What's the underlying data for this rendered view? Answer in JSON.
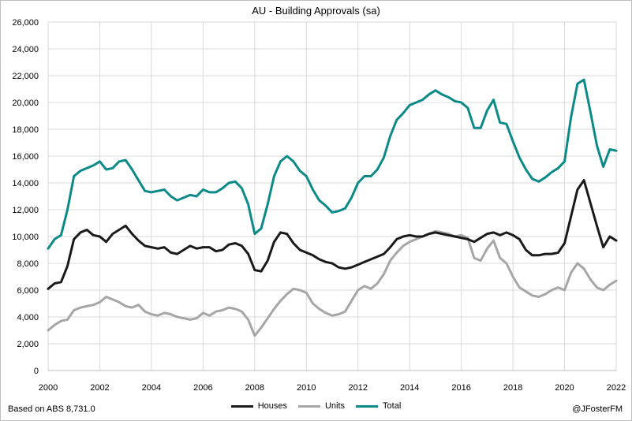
{
  "chart_data": {
    "type": "line",
    "title": "AU - Building Approvals (sa)",
    "source_note": "Based on ABS 8,731.0",
    "credit": "@JFosterFM",
    "xlim": [
      2000,
      2022
    ],
    "ylim": [
      0,
      26000
    ],
    "xticks": [
      "2000",
      "2002",
      "2004",
      "2006",
      "2008",
      "2010",
      "2012",
      "2014",
      "2016",
      "2018",
      "2020",
      "2022"
    ],
    "yticks": [
      "0",
      "2,000",
      "4,000",
      "6,000",
      "8,000",
      "10,000",
      "12,000",
      "14,000",
      "16,000",
      "18,000",
      "20,000",
      "22,000",
      "24,000",
      "26,000"
    ],
    "grid": true,
    "legend_position": "bottom",
    "x": [
      2000.0,
      2000.25,
      2000.5,
      2000.75,
      2001.0,
      2001.25,
      2001.5,
      2001.75,
      2002.0,
      2002.25,
      2002.5,
      2002.75,
      2003.0,
      2003.25,
      2003.5,
      2003.75,
      2004.0,
      2004.25,
      2004.5,
      2004.75,
      2005.0,
      2005.25,
      2005.5,
      2005.75,
      2006.0,
      2006.25,
      2006.5,
      2006.75,
      2007.0,
      2007.25,
      2007.5,
      2007.75,
      2008.0,
      2008.25,
      2008.5,
      2008.75,
      2009.0,
      2009.25,
      2009.5,
      2009.75,
      2010.0,
      2010.25,
      2010.5,
      2010.75,
      2011.0,
      2011.25,
      2011.5,
      2011.75,
      2012.0,
      2012.25,
      2012.5,
      2012.75,
      2013.0,
      2013.25,
      2013.5,
      2013.75,
      2014.0,
      2014.25,
      2014.5,
      2014.75,
      2015.0,
      2015.25,
      2015.5,
      2015.75,
      2016.0,
      2016.25,
      2016.5,
      2016.75,
      2017.0,
      2017.25,
      2017.5,
      2017.75,
      2018.0,
      2018.25,
      2018.5,
      2018.75,
      2019.0,
      2019.25,
      2019.5,
      2019.75,
      2020.0,
      2020.25,
      2020.5,
      2020.75,
      2021.0,
      2021.25,
      2021.5,
      2021.75,
      2022.0
    ],
    "series": [
      {
        "name": "Houses",
        "color": "#1a1a1a",
        "values": [
          6100,
          6500,
          6600,
          7800,
          9800,
          10300,
          10500,
          10100,
          10000,
          9600,
          10200,
          10500,
          10800,
          10200,
          9700,
          9300,
          9200,
          9100,
          9200,
          8800,
          8700,
          9000,
          9300,
          9100,
          9200,
          9200,
          8900,
          9000,
          9400,
          9500,
          9300,
          8700,
          7500,
          7400,
          8200,
          9600,
          10300,
          10200,
          9500,
          9000,
          8800,
          8600,
          8300,
          8100,
          8000,
          7700,
          7600,
          7700,
          7900,
          8100,
          8300,
          8500,
          8700,
          9200,
          9800,
          10000,
          10100,
          10000,
          10000,
          10200,
          10300,
          10200,
          10100,
          10000,
          9900,
          9800,
          9600,
          9900,
          10200,
          10300,
          10100,
          10300,
          10100,
          9800,
          9000,
          8600,
          8600,
          8700,
          8700,
          8800,
          9500,
          11500,
          13500,
          14200,
          12500,
          10800,
          9200,
          10000,
          9700
        ]
      },
      {
        "name": "Units",
        "color": "#a6a6a6",
        "values": [
          3000,
          3400,
          3700,
          3800,
          4500,
          4700,
          4800,
          4900,
          5100,
          5500,
          5300,
          5100,
          4800,
          4700,
          4900,
          4400,
          4200,
          4100,
          4300,
          4200,
          4000,
          3900,
          3800,
          3900,
          4300,
          4100,
          4400,
          4500,
          4700,
          4600,
          4400,
          3800,
          2600,
          3200,
          3900,
          4600,
          5200,
          5700,
          6100,
          6000,
          5800,
          5000,
          4600,
          4300,
          4100,
          4200,
          4400,
          5200,
          6000,
          6300,
          6100,
          6500,
          7200,
          8200,
          8800,
          9300,
          9600,
          9800,
          10000,
          10200,
          10400,
          10300,
          10200,
          10000,
          10100,
          9900,
          8400,
          8200,
          9100,
          9700,
          8400,
          8000,
          7000,
          6200,
          5900,
          5600,
          5500,
          5700,
          6000,
          6200,
          6000,
          7300,
          8000,
          7600,
          6800,
          6200,
          6000,
          6400,
          6700
        ]
      },
      {
        "name": "Total",
        "color": "#0b8a88",
        "values": [
          9100,
          9800,
          10100,
          12000,
          14500,
          14900,
          15100,
          15300,
          15600,
          15000,
          15100,
          15600,
          15700,
          15000,
          14200,
          13400,
          13300,
          13400,
          13500,
          13000,
          12700,
          12900,
          13100,
          13000,
          13500,
          13300,
          13300,
          13600,
          14000,
          14100,
          13600,
          12400,
          10200,
          10600,
          12400,
          14500,
          15600,
          16000,
          15600,
          14900,
          14500,
          13500,
          12700,
          12300,
          11800,
          11900,
          12100,
          12900,
          14000,
          14500,
          14500,
          15000,
          15900,
          17500,
          18700,
          19200,
          19800,
          20000,
          20200,
          20600,
          20900,
          20600,
          20400,
          20100,
          20000,
          19600,
          18100,
          18100,
          19400,
          20200,
          18500,
          18400,
          17100,
          15900,
          15000,
          14300,
          14100,
          14400,
          14800,
          15100,
          15600,
          18900,
          21400,
          21700,
          19300,
          16800,
          15200,
          16500,
          16400
        ]
      }
    ]
  }
}
